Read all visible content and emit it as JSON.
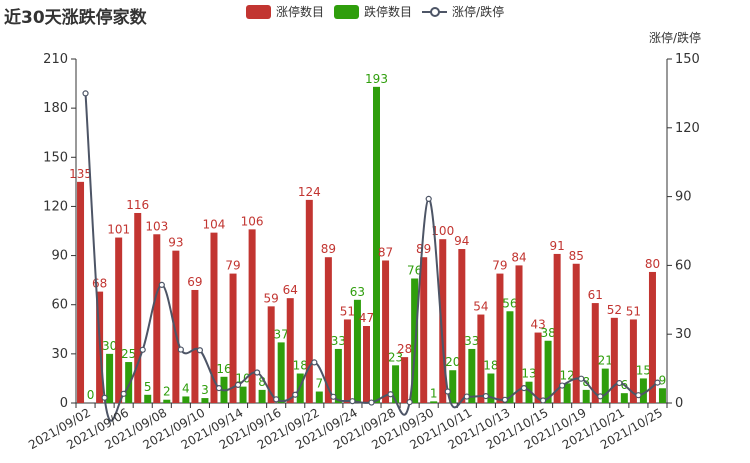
{
  "title": "近30天涨跌停家数",
  "colors": {
    "limit_up": "#c23531",
    "limit_down": "#2f9e0c",
    "ratio": "#4d5566",
    "axis": "#333333"
  },
  "legend": {
    "limit_up": "涨停数目",
    "limit_down": "跌停数目",
    "ratio": "涨停/跌停"
  },
  "chart_data": {
    "type": "bar",
    "x_tick_labels": [
      "2021/09/02",
      "2021/09/06",
      "2021/09/08",
      "2021/09/10",
      "2021/09/14",
      "2021/09/16",
      "2021/09/22",
      "2021/09/24",
      "2021/09/28",
      "2021/09/30",
      "2021/10/11",
      "2021/10/13",
      "2021/10/15",
      "2021/10/19",
      "2021/10/21",
      "2021/10/25"
    ],
    "y_left": {
      "min": 0,
      "max": 210,
      "ticks": [
        0,
        30,
        60,
        90,
        120,
        150,
        180,
        210
      ]
    },
    "y_right": {
      "label": "涨停/跌停",
      "min": 0,
      "max": 150,
      "ticks": [
        0,
        30,
        60,
        90,
        120,
        150
      ]
    },
    "series": [
      {
        "name": "涨停数目",
        "type": "bar",
        "values": [
          135,
          68,
          101,
          116,
          103,
          93,
          69,
          104,
          79,
          106,
          59,
          64,
          124,
          89,
          51,
          47,
          87,
          28,
          89,
          100,
          94,
          54,
          79,
          84,
          43,
          91,
          85,
          61,
          52,
          51,
          80
        ]
      },
      {
        "name": "跌停数目",
        "type": "bar",
        "values": [
          0,
          30,
          25,
          5,
          2,
          4,
          3,
          16,
          10,
          8,
          37,
          18,
          7,
          33,
          63,
          193,
          23,
          76,
          1,
          20,
          33,
          18,
          56,
          13,
          38,
          12,
          8,
          21,
          6,
          15,
          9
        ]
      },
      {
        "name": "涨停/跌停",
        "type": "line",
        "smooth": true,
        "axis": "right",
        "values": [
          135,
          2.3,
          4.0,
          23.2,
          51.5,
          23.3,
          23.0,
          6.5,
          7.9,
          13.3,
          1.6,
          3.6,
          17.7,
          2.7,
          0.8,
          0.2,
          3.8,
          0.4,
          89,
          5.0,
          2.8,
          3.0,
          1.4,
          6.5,
          1.1,
          7.6,
          10.6,
          2.9,
          8.7,
          3.4,
          8.9
        ]
      }
    ]
  }
}
